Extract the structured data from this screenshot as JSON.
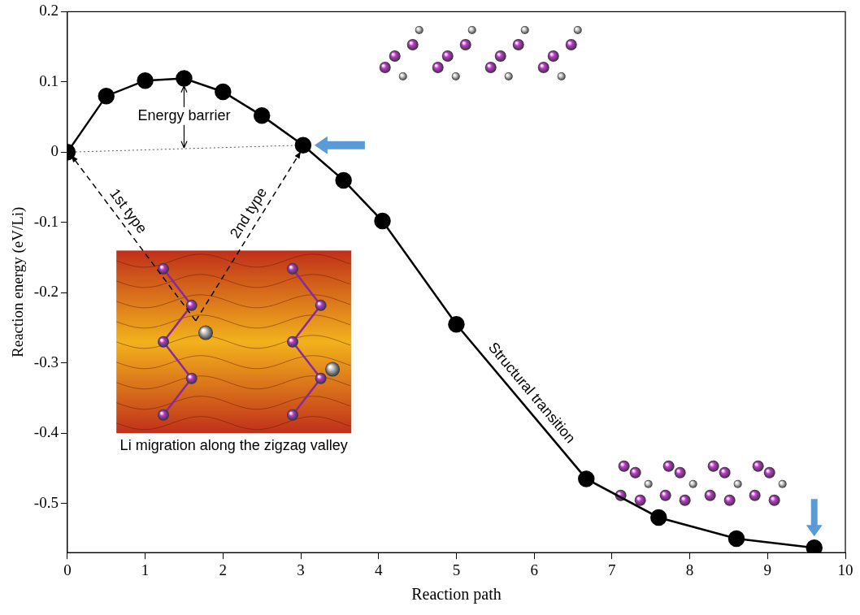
{
  "chart_data": {
    "type": "line",
    "x": [
      0,
      0.5,
      1,
      1.5,
      2,
      2.5,
      3.03,
      3.55,
      4.05,
      5,
      6.67,
      7.6,
      8.6,
      9.6
    ],
    "values": [
      0,
      0.08,
      0.102,
      0.105,
      0.086,
      0.052,
      0.01,
      -0.04,
      -0.098,
      -0.245,
      -0.465,
      -0.52,
      -0.55,
      -0.563
    ],
    "color": "#000000",
    "marker": "circle",
    "line_style": "solid",
    "xlabel": "Reaction path",
    "ylabel": "Reaction energy (eV/Li)",
    "xlim": [
      0,
      10
    ],
    "xticks": [
      0,
      1,
      2,
      3,
      4,
      5,
      6,
      7,
      8,
      9,
      10
    ],
    "ylim": [
      -0.57,
      0.2
    ],
    "yticks": [
      -0.5,
      -0.4,
      -0.3,
      -0.2,
      -0.1,
      0,
      0.1,
      0.2
    ],
    "grid": false,
    "annotations": [
      "Energy barrier",
      "1st type",
      "2nd type",
      "Structural transition",
      "Li migration along the zigzag valley"
    ]
  }
}
